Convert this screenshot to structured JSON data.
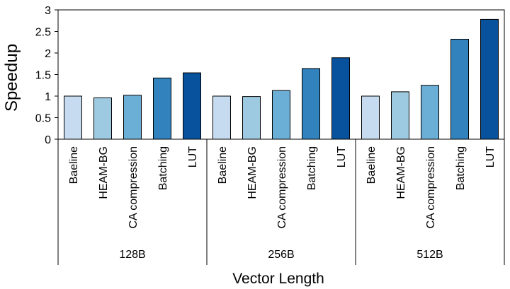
{
  "chart_data": {
    "type": "bar",
    "ylabel": "Speedup",
    "xlabel": "Vector Length",
    "ylim": [
      0,
      3
    ],
    "yticks": [
      "0",
      "0.5",
      "1",
      "1.5",
      "2",
      "2.5",
      "3"
    ],
    "grid": false,
    "legend": "none",
    "groups": [
      "128B",
      "256B",
      "512B"
    ],
    "categories": [
      "Baeline",
      "HEAM-BG",
      "CA compression",
      "Batching",
      "LUT"
    ],
    "colors": [
      "#c6dbef",
      "#9ecae1",
      "#6baed6",
      "#3182bd",
      "#08519c"
    ],
    "values": [
      [
        1.0,
        0.96,
        1.02,
        1.42,
        1.54
      ],
      [
        1.0,
        0.99,
        1.13,
        1.64,
        1.89
      ],
      [
        1.0,
        1.1,
        1.25,
        2.32,
        2.78
      ]
    ]
  }
}
